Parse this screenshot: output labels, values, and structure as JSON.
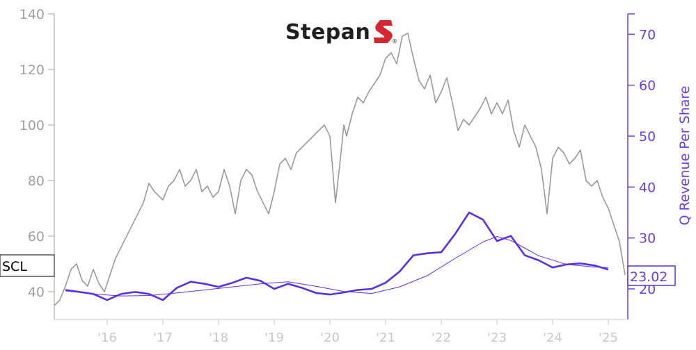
{
  "chart_data": {
    "type": "line",
    "logo_text": "Stepan",
    "ticker_label": "SCL",
    "last_value_label": "23.02",
    "ylabel_right": "Q Revenue Per Share",
    "x_tick_labels": [
      "'16",
      "'17",
      "'18",
      "'19",
      "'20",
      "'21",
      "'22",
      "'23",
      "'24",
      "'25"
    ],
    "x_range": [
      2015.05,
      2025.35
    ],
    "y_left": {
      "ylim": [
        30,
        140
      ],
      "ticks": [
        40,
        60,
        80,
        100,
        120,
        140
      ]
    },
    "y_right": {
      "ylim": [
        14,
        74
      ],
      "ticks": [
        20,
        30,
        40,
        50,
        60,
        70
      ]
    },
    "colors": {
      "price": "#999999",
      "revenue": "#5b2fe8",
      "revenue_trend": "#5b2fe8",
      "tick_left": "#a0a0a0",
      "tick_right": "#6a3de8",
      "tick_x": "#c8c8c8",
      "logo_red": "#d7262f"
    },
    "series": [
      {
        "axis": "left",
        "x": [
          2015.05,
          2015.15,
          2015.25,
          2015.35,
          2015.45,
          2015.55,
          2015.65,
          2015.75,
          2015.85,
          2015.95,
          2016.05,
          2016.15,
          2016.25,
          2016.35,
          2016.45,
          2016.55,
          2016.65,
          2016.75,
          2016.85,
          2016.95,
          2017.0,
          2017.1,
          2017.2,
          2017.3,
          2017.4,
          2017.5,
          2017.6,
          2017.7,
          2017.8,
          2017.9,
          2018.0,
          2018.1,
          2018.2,
          2018.3,
          2018.4,
          2018.5,
          2018.6,
          2018.7,
          2018.8,
          2018.9,
          2019.0,
          2019.1,
          2019.2,
          2019.3,
          2019.4,
          2019.5,
          2019.6,
          2019.7,
          2019.8,
          2019.9,
          2020.0,
          2020.1,
          2020.2,
          2020.25,
          2020.3,
          2020.4,
          2020.5,
          2020.6,
          2020.7,
          2020.8,
          2020.9,
          2021.0,
          2021.1,
          2021.2,
          2021.3,
          2021.4,
          2021.5,
          2021.6,
          2021.7,
          2021.8,
          2021.9,
          2022.0,
          2022.1,
          2022.2,
          2022.3,
          2022.4,
          2022.5,
          2022.6,
          2022.7,
          2022.8,
          2022.9,
          2023.0,
          2023.1,
          2023.2,
          2023.3,
          2023.4,
          2023.5,
          2023.6,
          2023.7,
          2023.8,
          2023.9,
          2024.0,
          2024.1,
          2024.2,
          2024.3,
          2024.4,
          2024.5,
          2024.6,
          2024.7,
          2024.8,
          2024.9,
          2025.0,
          2025.1,
          2025.2,
          2025.3
        ],
        "y": [
          35,
          37,
          42,
          48,
          50,
          44,
          42,
          48,
          43,
          40,
          46,
          52,
          56,
          60,
          64,
          68,
          72,
          79,
          76,
          74,
          73,
          78,
          80,
          84,
          78,
          80,
          84,
          76,
          78,
          74,
          76,
          84,
          78,
          68,
          80,
          84,
          82,
          76,
          72,
          68,
          76,
          86,
          88,
          84,
          90,
          92,
          94,
          96,
          98,
          100,
          96,
          72,
          90,
          100,
          96,
          104,
          110,
          108,
          112,
          115,
          118,
          124,
          126,
          122,
          132,
          133,
          124,
          116,
          113,
          118,
          108,
          112,
          117,
          108,
          98,
          102,
          100,
          103,
          106,
          110,
          104,
          108,
          104,
          109,
          98,
          92,
          100,
          96,
          92,
          84,
          68,
          88,
          92,
          90,
          86,
          88,
          91,
          80,
          78,
          80,
          74,
          70,
          64,
          58,
          46
        ]
      },
      {
        "axis": "right",
        "x": [
          2015.25,
          2015.5,
          2015.75,
          2016.0,
          2016.25,
          2016.5,
          2016.75,
          2017.0,
          2017.25,
          2017.5,
          2017.75,
          2018.0,
          2018.25,
          2018.5,
          2018.75,
          2019.0,
          2019.25,
          2019.5,
          2019.75,
          2020.0,
          2020.25,
          2020.5,
          2020.75,
          2021.0,
          2021.25,
          2021.5,
          2021.75,
          2022.0,
          2022.25,
          2022.5,
          2022.75,
          2023.0,
          2023.25,
          2023.5,
          2023.75,
          2024.0,
          2024.25,
          2024.5,
          2024.75,
          2025.0
        ],
        "y": [
          19.8,
          19.4,
          19.0,
          17.8,
          19.0,
          19.4,
          19.0,
          17.8,
          20.2,
          21.4,
          21.0,
          20.4,
          21.2,
          22.2,
          21.6,
          20.0,
          21.0,
          20.2,
          19.2,
          18.9,
          19.3,
          19.8,
          20.0,
          21.2,
          23.4,
          26.6,
          27.0,
          27.2,
          30.8,
          35.0,
          33.6,
          29.4,
          30.4,
          26.6,
          25.6,
          24.2,
          24.8,
          25.0,
          24.6,
          23.8
        ]
      },
      {
        "axis": "right",
        "x": [
          2015.25,
          2015.75,
          2016.25,
          2016.75,
          2017.25,
          2017.75,
          2018.25,
          2018.75,
          2019.25,
          2019.75,
          2020.25,
          2020.75,
          2021.25,
          2021.75,
          2022.25,
          2022.75,
          2023.0,
          2023.25,
          2023.75,
          2024.25,
          2024.75,
          2025.0
        ],
        "y": [
          19.6,
          19.0,
          18.6,
          18.7,
          19.2,
          19.8,
          20.4,
          21.0,
          21.4,
          20.5,
          19.5,
          19.1,
          20.4,
          22.6,
          26.0,
          29.2,
          30.3,
          29.5,
          26.5,
          24.8,
          24.3,
          24.2
        ]
      }
    ]
  }
}
